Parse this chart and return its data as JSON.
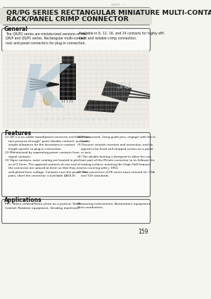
{
  "title_line1": "QR/PG SERIES RECTANGULAR MINIATURE MULTI-CONTACT",
  "title_line2": "RACK/PANEL CRIMP CONNECTOR",
  "header_small": "QR/P5 · · ·",
  "section_general": "General",
  "general_text_left": "The QR/PG series are miniaturized versions of the\nQR/P and QS/P1 series. Rectangular multi-contact\nrack and panel connectors for plug-in connection.",
  "general_text_right": "Available in 6, 12, 16, and 24 contacts for highly effi-\ncient and reliable crimp connection.",
  "section_features": "Features",
  "features_left": "(1) QR is a no-solder board/panel connector and blade con-\n    tact pressure through\" point (double contact), and had\n    simple allowance for the deviations in contact\n    length specific to plug-in connection.\n(2) Miniaturized by separating power contacts from\n    signal contacts.\n(3) Signs contacts, outer coating are located in pitch\n    as of 2.5mm. The opposed contacts at one end of\n    the connector are spaced at 4mm so that they are\n    well-plated from voltage. Contacts next the power wire\n    pairs, short the connector is available (JA50-8).",
  "features_right": "(4) Miniaturized. Using guide pins, engage/ with the le-\n    vertor.\n(5) Ensures smooth insertion and extraction, and de-\n    signed to be fossil and stripped screws on a panel,\n    or axis.\n(6) The double-locking is designed to allow the con-\n    tact part of the M-hole connector to its follower the\n    mating surface, meeting the Virgin Hall frequen-\n    cies covering with J, 1952.\n(7) The connectors of P6 series have entered UL, CSA\n    and TUV standards.",
  "section_applications": "Applications",
  "applications_left": "PPC, Token-related/Semi-clean as a protest, Steel\nControl, Rotation equipment, Vending machines.",
  "applications_right": "Measuring instruments, Automation equipment,\nSemi-conductors.",
  "page_number": "159",
  "bg_color": "#f5f5f0",
  "title_bg": "#e0e0d8",
  "border_color": "#666666",
  "text_color": "#1a1a1a",
  "light_text": "#333333",
  "watermark_k_color": "#b8ccd8",
  "watermark_text_color": "#c0d0dc",
  "grid_color": "#d0d0c8",
  "connector_dark": "#1a1a1a",
  "connector_mid": "#3a3a3a"
}
